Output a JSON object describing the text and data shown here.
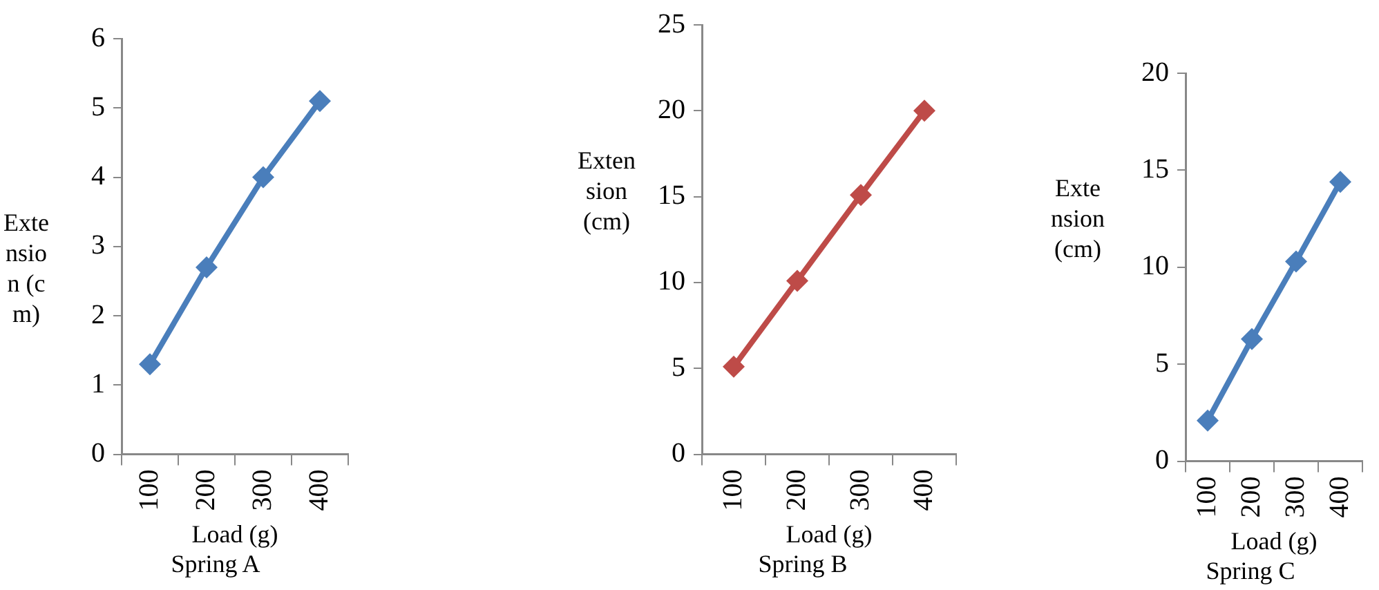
{
  "chart_data": [
    {
      "type": "line",
      "title": "Spring A",
      "xlabel": "Load (g)",
      "ylabel": "Extension (cm)",
      "categories": [
        "100",
        "200",
        "300",
        "400"
      ],
      "series": [
        {
          "color": "#4a7ebb",
          "values": [
            1.3,
            2.7,
            4.0,
            5.1
          ]
        }
      ],
      "ylim": [
        0,
        6
      ],
      "yticks": [
        0,
        1,
        2,
        3,
        4,
        5,
        6
      ],
      "grid": false,
      "legend": false,
      "marker": "diamond",
      "line_style": "solid"
    },
    {
      "type": "line",
      "title": "Spring B",
      "xlabel": "Load (g)",
      "ylabel": "Extension (cm)",
      "categories": [
        "100",
        "200",
        "300",
        "400"
      ],
      "series": [
        {
          "color": "#be4b48",
          "values": [
            5.1,
            10.1,
            15.1,
            20.0
          ]
        }
      ],
      "ylim": [
        0,
        25
      ],
      "yticks": [
        0,
        5,
        10,
        15,
        20,
        25
      ],
      "grid": false,
      "legend": false,
      "marker": "diamond",
      "line_style": "solid"
    },
    {
      "type": "line",
      "title": "Spring C",
      "xlabel": "Load (g)",
      "ylabel": "Extension (cm)",
      "categories": [
        "100",
        "200",
        "300",
        "400"
      ],
      "series": [
        {
          "color": "#4a7ebb",
          "values": [
            2.1,
            6.3,
            10.3,
            14.4
          ]
        }
      ],
      "ylim": [
        0,
        20
      ],
      "yticks": [
        0,
        5,
        10,
        15,
        20
      ],
      "grid": false,
      "legend": false,
      "marker": "diamond",
      "line_style": "solid"
    }
  ]
}
